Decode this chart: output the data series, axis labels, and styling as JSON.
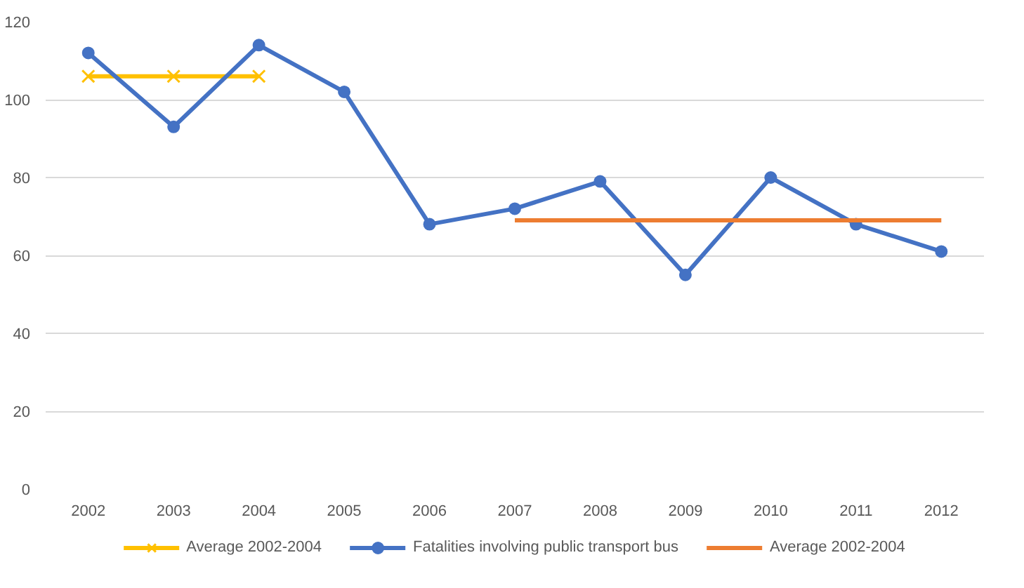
{
  "chart_data": {
    "type": "line",
    "categories": [
      "2002",
      "2003",
      "2004",
      "2005",
      "2006",
      "2007",
      "2008",
      "2009",
      "2010",
      "2011",
      "2012"
    ],
    "series": [
      {
        "name": "Average 2002-2004",
        "color": "#ffc000",
        "marker": "cross",
        "values": [
          106,
          106,
          106,
          null,
          null,
          null,
          null,
          null,
          null,
          null,
          null
        ]
      },
      {
        "name": "Fatalities involving public transport bus",
        "color": "#4472c4",
        "marker": "circle",
        "values": [
          112,
          93,
          114,
          102,
          68,
          72,
          79,
          55,
          80,
          68,
          61
        ]
      },
      {
        "name": "Average 2002-2004",
        "color": "#ed7d31",
        "marker": "none",
        "values": [
          null,
          null,
          null,
          null,
          null,
          69,
          69,
          69,
          69,
          69,
          69
        ]
      }
    ],
    "ylim": [
      0,
      120
    ],
    "yticks": [
      0,
      20,
      40,
      60,
      80,
      100,
      120
    ],
    "grid": "y",
    "legend": "bottom"
  }
}
